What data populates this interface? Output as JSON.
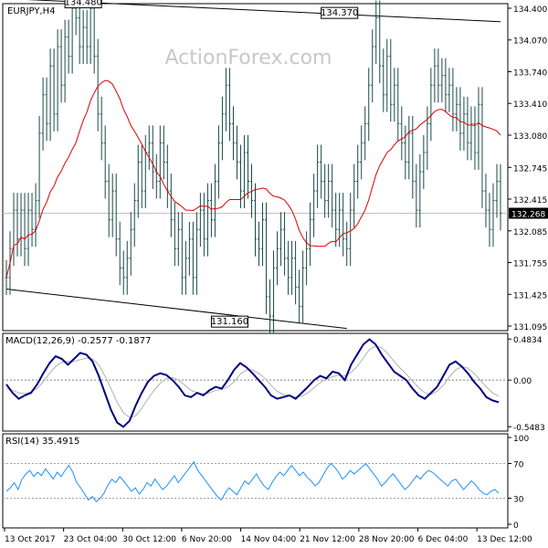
{
  "chart_data": {
    "type": "line",
    "title": "EURJPY,H4",
    "ohlc": [
      "132.568",
      "132.578",
      "132.268",
      "132.268"
    ],
    "watermark": "ActionForex.com",
    "price_panel": {
      "ylim": [
        131.095,
        134.4
      ],
      "y_ticks": [
        "134.400",
        "134.070",
        "133.740",
        "133.410",
        "133.080",
        "132.745",
        "132.415",
        "132.085",
        "131.755",
        "131.425",
        "131.095"
      ],
      "last_price": "132.268",
      "last_price_value": 132.268,
      "annotations": [
        {
          "text": "134.480",
          "x": 21,
          "y": 134.48
        },
        {
          "text": "134.370",
          "x": 91,
          "y": 134.37
        },
        {
          "text": "131.160",
          "x": 61,
          "y": 131.16
        }
      ],
      "trendlines": [
        {
          "x": [
            0,
            135
          ],
          "y": [
            134.5,
            134.26
          ]
        },
        {
          "x": [
            0,
            93
          ],
          "y": [
            131.48,
            131.07
          ]
        }
      ],
      "ma_color": "#dd0000",
      "bar_color": "#1a4a4a",
      "close": [
        131.6,
        131.9,
        132.3,
        132.0,
        132.3,
        131.9,
        132.3,
        132.1,
        132.4,
        133.1,
        133.5,
        133.2,
        133.8,
        133.3,
        134.0,
        133.6,
        134.1,
        133.9,
        134.4,
        134.3,
        134.0,
        134.2,
        134.0,
        134.4,
        133.9,
        133.3,
        133.0,
        132.6,
        132.2,
        132.5,
        132.0,
        131.7,
        131.6,
        131.8,
        132.1,
        132.4,
        132.8,
        132.5,
        132.9,
        133.0,
        132.7,
        132.6,
        133.0,
        132.8,
        132.5,
        132.2,
        131.9,
        132.1,
        131.6,
        131.8,
        132.0,
        131.6,
        132.1,
        132.3,
        132.0,
        132.4,
        132.2,
        132.6,
        133.0,
        133.3,
        133.6,
        133.2,
        133.0,
        132.8,
        132.5,
        132.9,
        132.6,
        132.4,
        132.0,
        131.9,
        132.2,
        131.4,
        131.2,
        131.7,
        131.9,
        132.1,
        131.8,
        131.6,
        131.8,
        131.5,
        131.3,
        131.7,
        131.9,
        132.2,
        132.5,
        132.8,
        132.6,
        132.4,
        132.6,
        132.3,
        132.1,
        132.3,
        132.0,
        131.9,
        132.3,
        132.6,
        132.8,
        133.0,
        133.2,
        133.6,
        134.0,
        134.3,
        133.8,
        133.5,
        133.9,
        133.4,
        133.6,
        133.2,
        133.0,
        132.8,
        133.1,
        132.6,
        132.3,
        132.7,
        132.9,
        133.2,
        133.6,
        133.8,
        133.6,
        133.7,
        133.5,
        133.6,
        133.3,
        133.4,
        133.1,
        133.3,
        133.0,
        133.2,
        132.9,
        133.4,
        132.5,
        132.3,
        132.1,
        132.4,
        132.6,
        132.27
      ]
    },
    "macd_panel": {
      "label": "MACD(12,26,9)",
      "values": [
        "-0.2577",
        "-0.1877"
      ],
      "ylim": [
        -0.6,
        0.55
      ],
      "y_ticks": [
        "0.4834",
        "0.00",
        "-0.5483"
      ],
      "main_color": "#000080",
      "signal_color": "#b0b0b0",
      "main": [
        -0.05,
        -0.15,
        -0.22,
        -0.18,
        -0.15,
        -0.05,
        0.08,
        0.2,
        0.28,
        0.25,
        0.18,
        0.25,
        0.32,
        0.3,
        0.22,
        0.05,
        -0.15,
        -0.35,
        -0.5,
        -0.55,
        -0.48,
        -0.3,
        -0.15,
        -0.02,
        0.05,
        0.08,
        0.06,
        0.0,
        -0.08,
        -0.18,
        -0.2,
        -0.15,
        -0.18,
        -0.12,
        -0.08,
        -0.1,
        0.0,
        0.12,
        0.2,
        0.15,
        0.08,
        0.0,
        -0.08,
        -0.18,
        -0.22,
        -0.2,
        -0.18,
        -0.22,
        -0.15,
        -0.08,
        0.0,
        0.05,
        0.02,
        0.1,
        0.08,
        0.0,
        0.18,
        0.3,
        0.42,
        0.48,
        0.42,
        0.3,
        0.2,
        0.1,
        0.05,
        0.0,
        -0.1,
        -0.18,
        -0.22,
        -0.15,
        -0.08,
        0.05,
        0.18,
        0.22,
        0.16,
        0.08,
        -0.02,
        -0.1,
        -0.2,
        -0.24,
        -0.26
      ],
      "signal": [
        -0.1,
        -0.12,
        -0.15,
        -0.16,
        -0.14,
        -0.1,
        -0.02,
        0.08,
        0.16,
        0.21,
        0.22,
        0.22,
        0.24,
        0.26,
        0.25,
        0.18,
        0.05,
        -0.1,
        -0.26,
        -0.38,
        -0.44,
        -0.42,
        -0.33,
        -0.22,
        -0.12,
        -0.04,
        0.02,
        0.03,
        0.0,
        -0.06,
        -0.12,
        -0.15,
        -0.16,
        -0.15,
        -0.12,
        -0.11,
        -0.08,
        -0.02,
        0.07,
        0.12,
        0.12,
        0.08,
        0.02,
        -0.06,
        -0.13,
        -0.17,
        -0.18,
        -0.2,
        -0.19,
        -0.15,
        -0.09,
        -0.03,
        0.01,
        0.04,
        0.06,
        0.05,
        0.09,
        0.16,
        0.26,
        0.36,
        0.4,
        0.38,
        0.31,
        0.22,
        0.14,
        0.07,
        -0.01,
        -0.09,
        -0.15,
        -0.17,
        -0.13,
        -0.06,
        0.04,
        0.12,
        0.16,
        0.14,
        0.08,
        0.0,
        -0.08,
        -0.15,
        -0.19
      ]
    },
    "rsi_panel": {
      "label": "RSI(14)",
      "value": "35.4915",
      "ylim": [
        0,
        100
      ],
      "y_ticks": [
        "100",
        "70",
        "30",
        "0"
      ],
      "color": "#1e90ff",
      "values": [
        38,
        42,
        48,
        40,
        52,
        58,
        62,
        55,
        60,
        56,
        64,
        58,
        52,
        60,
        55,
        62,
        68,
        60,
        48,
        42,
        35,
        28,
        32,
        26,
        30,
        36,
        45,
        52,
        48,
        55,
        50,
        44,
        38,
        42,
        35,
        40,
        48,
        44,
        52,
        46,
        40,
        44,
        50,
        56,
        48,
        54,
        60,
        66,
        72,
        62,
        56,
        50,
        44,
        38,
        32,
        28,
        36,
        42,
        38,
        34,
        42,
        50,
        46,
        52,
        58,
        50,
        44,
        40,
        48,
        55,
        60,
        56,
        62,
        68,
        62,
        56,
        60,
        54,
        50,
        44,
        48,
        56,
        64,
        70,
        66,
        60,
        52,
        56,
        62,
        58,
        62,
        66,
        70,
        64,
        58,
        52,
        44,
        48,
        54,
        58,
        52,
        46,
        40,
        44,
        50,
        56,
        52,
        58,
        62,
        60,
        56,
        52,
        48,
        44,
        50,
        52,
        46,
        40,
        45,
        50,
        46,
        40,
        36,
        34,
        38,
        40,
        36
      ]
    },
    "x_ticks": [
      "13 Oct 2017",
      "23 Oct 04:00",
      "30 Oct 12:00",
      "6 Nov 20:00",
      "14 Nov 04:00",
      "21 Nov 12:00",
      "28 Nov 20:00",
      "6 Dec 04:00",
      "13 Dec 12:00"
    ]
  }
}
